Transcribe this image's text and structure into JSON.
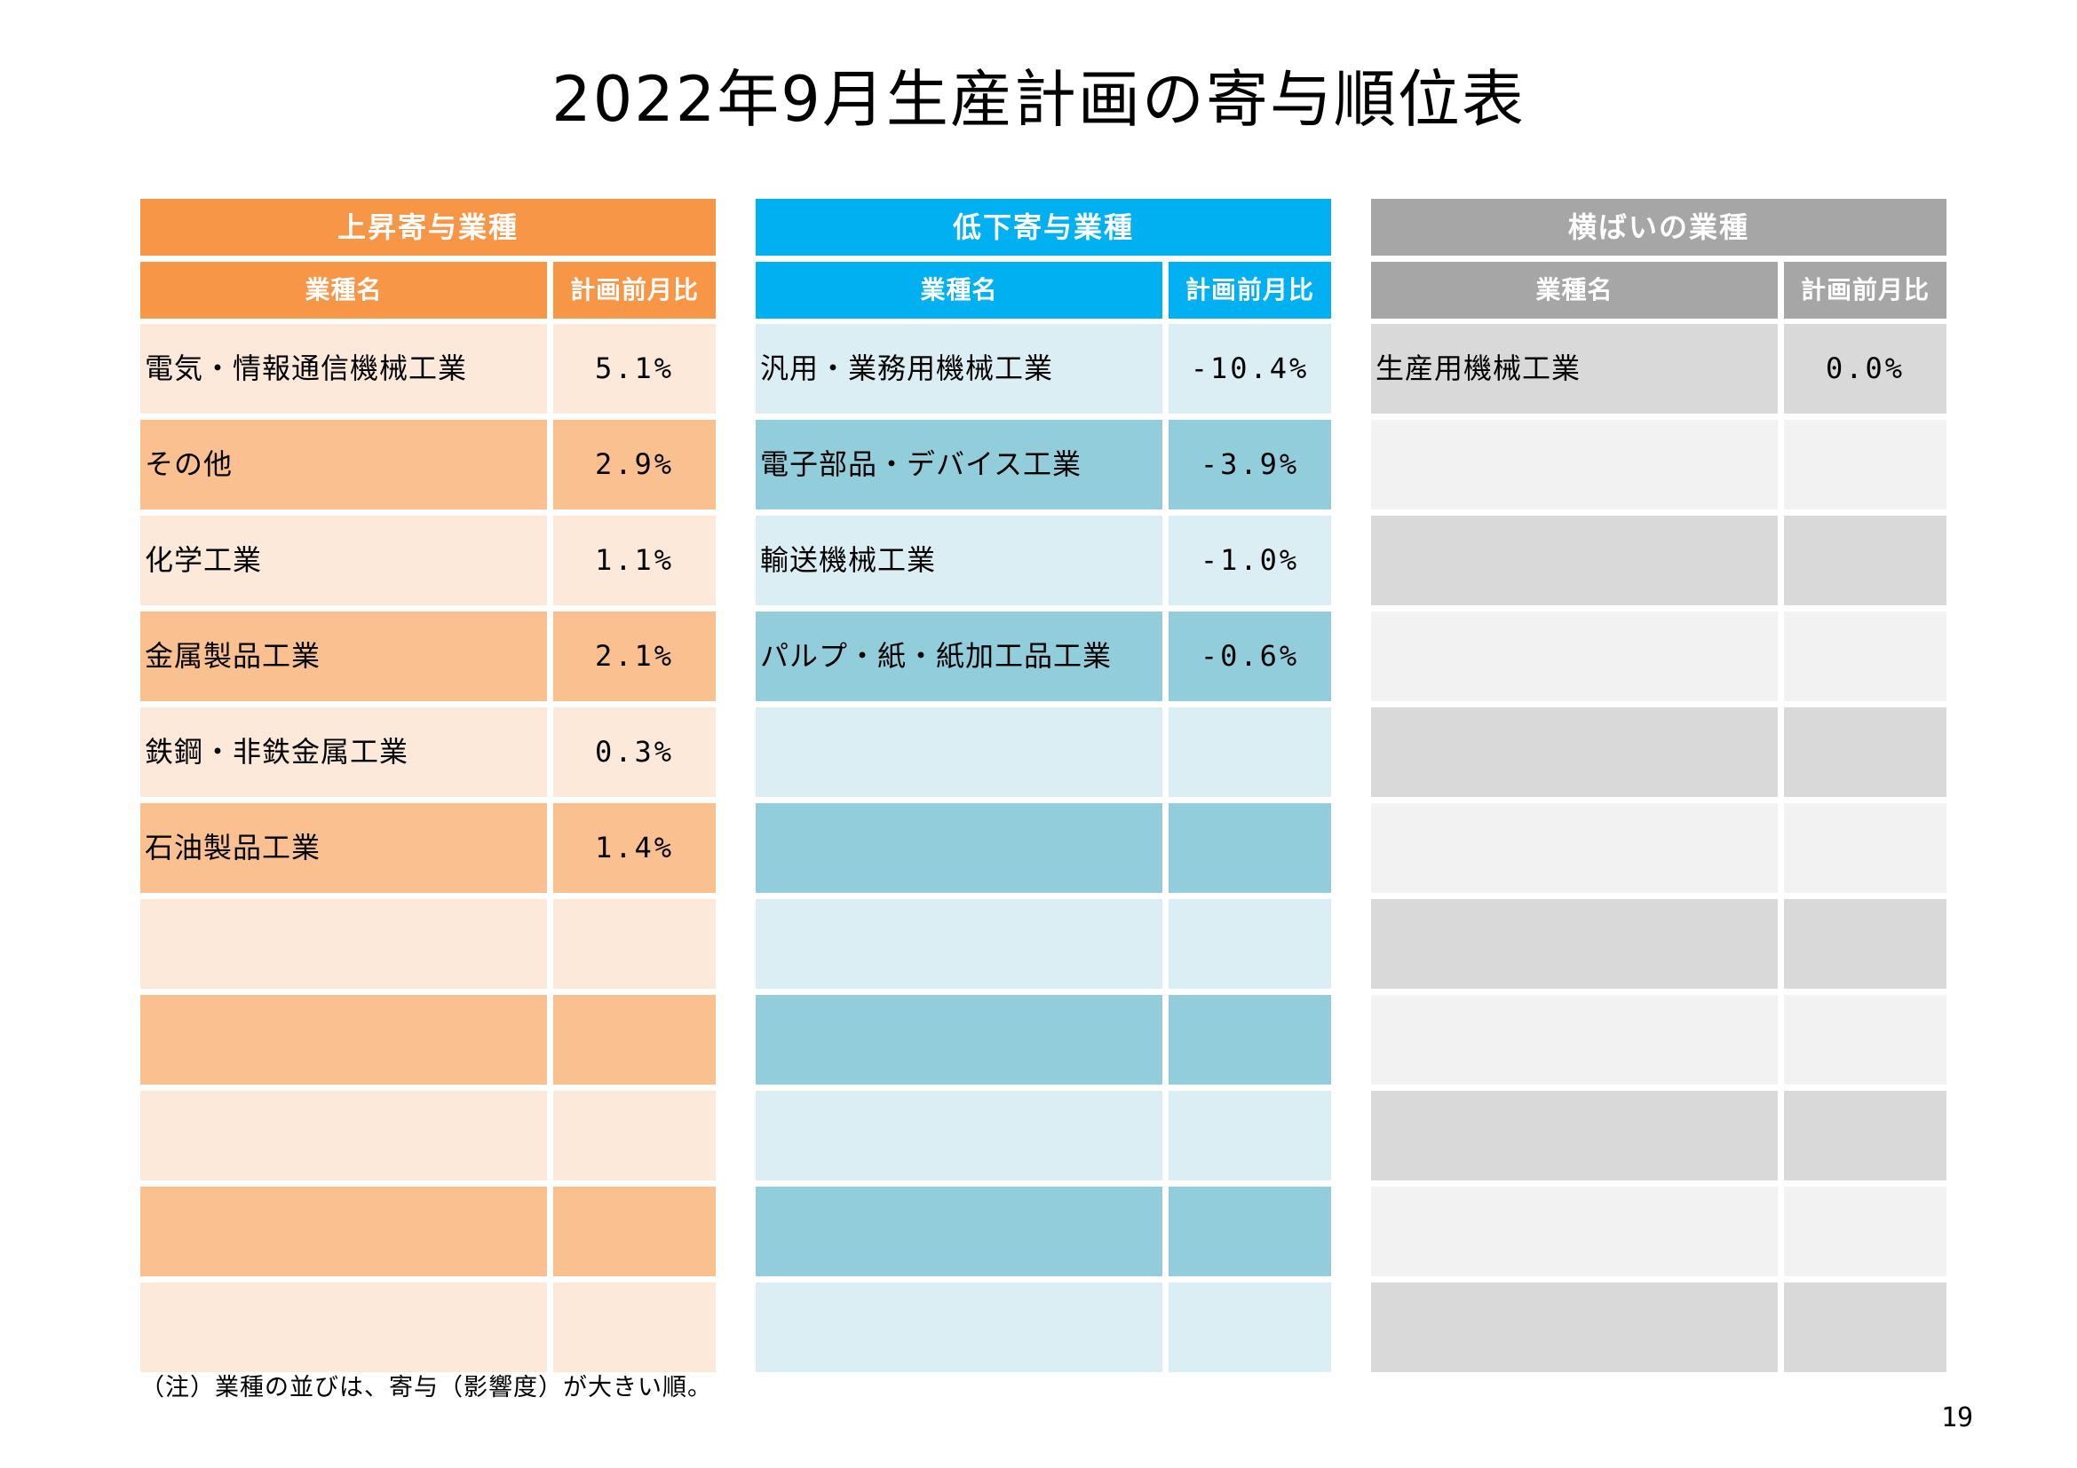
{
  "page": {
    "title": "2022年9月生産計画の寄与順位表",
    "note": "（注）業種の並びは、寄与（影響度）が大きい順。",
    "page_number": "19"
  },
  "colors": {
    "rise_header": "#f79646",
    "rise_row_light": "#fde9d9",
    "rise_row_dark": "#fac090",
    "fall_header": "#00b0f0",
    "fall_row_light": "#dbeef4",
    "fall_row_dark": "#92cddc",
    "flat_header": "#a6a6a6",
    "flat_row_light": "#d9d9d9",
    "flat_row_dark": "#f2f2f2"
  },
  "panels": {
    "rise": {
      "title": "上昇寄与業種",
      "col_name": "業種名",
      "col_value": "計画前月比",
      "rows": [
        {
          "name": "電気・情報通信機械工業",
          "value": "5.1%"
        },
        {
          "name": "その他",
          "value": "2.9%"
        },
        {
          "name": "化学工業",
          "value": "1.1%"
        },
        {
          "name": "金属製品工業",
          "value": "2.1%"
        },
        {
          "name": "鉄鋼・非鉄金属工業",
          "value": "0.3%"
        },
        {
          "name": "石油製品工業",
          "value": "1.4%"
        },
        {
          "name": "",
          "value": ""
        },
        {
          "name": "",
          "value": ""
        },
        {
          "name": "",
          "value": ""
        },
        {
          "name": "",
          "value": ""
        },
        {
          "name": "",
          "value": ""
        }
      ]
    },
    "fall": {
      "title": "低下寄与業種",
      "col_name": "業種名",
      "col_value": "計画前月比",
      "rows": [
        {
          "name": "汎用・業務用機械工業",
          "value": "-10.4%"
        },
        {
          "name": "電子部品・デバイス工業",
          "value": "-3.9%"
        },
        {
          "name": "輸送機械工業",
          "value": "-1.0%"
        },
        {
          "name": "パルプ・紙・紙加工品工業",
          "value": "-0.6%"
        },
        {
          "name": "",
          "value": ""
        },
        {
          "name": "",
          "value": ""
        },
        {
          "name": "",
          "value": ""
        },
        {
          "name": "",
          "value": ""
        },
        {
          "name": "",
          "value": ""
        },
        {
          "name": "",
          "value": ""
        },
        {
          "name": "",
          "value": ""
        }
      ]
    },
    "flat": {
      "title": "横ばいの業種",
      "col_name": "業種名",
      "col_value": "計画前月比",
      "rows": [
        {
          "name": "生産用機械工業",
          "value": "0.0%"
        },
        {
          "name": "",
          "value": ""
        },
        {
          "name": "",
          "value": ""
        },
        {
          "name": "",
          "value": ""
        },
        {
          "name": "",
          "value": ""
        },
        {
          "name": "",
          "value": ""
        },
        {
          "name": "",
          "value": ""
        },
        {
          "name": "",
          "value": ""
        },
        {
          "name": "",
          "value": ""
        },
        {
          "name": "",
          "value": ""
        },
        {
          "name": "",
          "value": ""
        }
      ]
    }
  }
}
